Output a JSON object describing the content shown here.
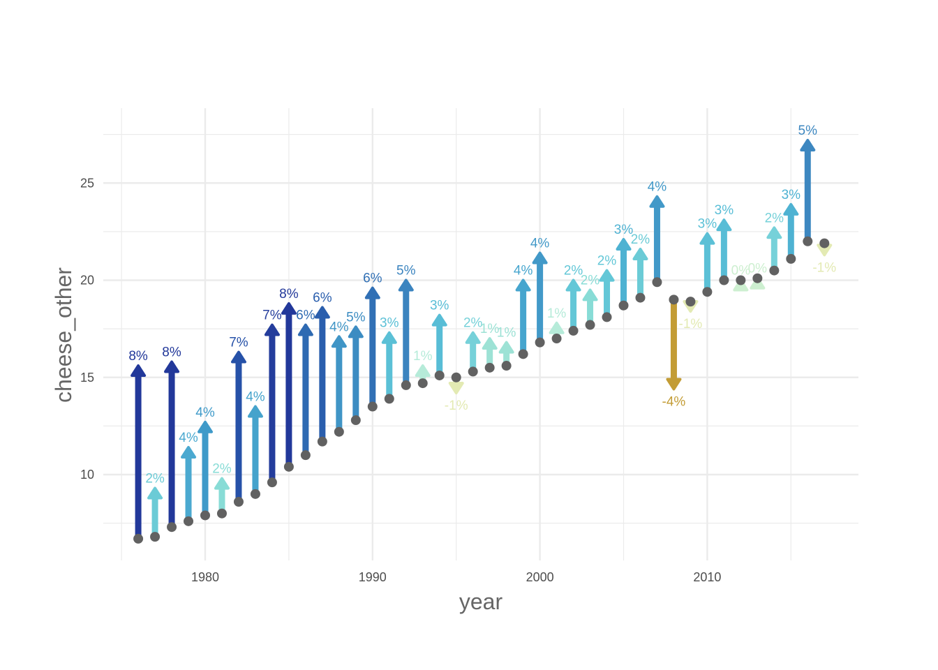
{
  "chart_data": {
    "type": "arrow-range",
    "title": "",
    "xlabel": "year",
    "ylabel": "cheese_other",
    "xlim": [
      1975,
      2018
    ],
    "ylim": [
      6,
      28.5
    ],
    "x_ticks": [
      1980,
      1990,
      2000,
      2010
    ],
    "x_tick_labels": [
      "1980",
      "1990",
      "2000",
      "2010"
    ],
    "y_ticks": [
      10,
      15,
      20,
      25
    ],
    "y_tick_labels": [
      "10",
      "15",
      "20",
      "25"
    ],
    "grid": true,
    "legend": "none",
    "start_point_color": "#616161",
    "points": [
      {
        "year": 1976,
        "from": 6.7,
        "to": 15.6,
        "label": "8%",
        "color": "#22389a"
      },
      {
        "year": 1977,
        "from": 6.8,
        "to": 9.3,
        "label": "2%",
        "color": "#6bcbd6"
      },
      {
        "year": 1978,
        "from": 7.3,
        "to": 15.8,
        "label": "8%",
        "color": "#22389a"
      },
      {
        "year": 1979,
        "from": 7.6,
        "to": 11.4,
        "label": "4%",
        "color": "#4ba9d0"
      },
      {
        "year": 1980,
        "from": 7.9,
        "to": 12.7,
        "label": "4%",
        "color": "#3f9ac9"
      },
      {
        "year": 1981,
        "from": 8.0,
        "to": 9.8,
        "label": "2%",
        "color": "#88dcd6"
      },
      {
        "year": 1982,
        "from": 8.6,
        "to": 16.3,
        "label": "7%",
        "color": "#2651a8"
      },
      {
        "year": 1983,
        "from": 9.0,
        "to": 13.5,
        "label": "4%",
        "color": "#45a3cc"
      },
      {
        "year": 1984,
        "from": 9.6,
        "to": 17.7,
        "label": "7%",
        "color": "#243d9c"
      },
      {
        "year": 1985,
        "from": 10.4,
        "to": 18.8,
        "label": "8%",
        "color": "#22389a"
      },
      {
        "year": 1986,
        "from": 11.0,
        "to": 17.7,
        "label": "6%",
        "color": "#2e6ab2"
      },
      {
        "year": 1987,
        "from": 11.7,
        "to": 18.6,
        "label": "6%",
        "color": "#2a5ead"
      },
      {
        "year": 1988,
        "from": 12.2,
        "to": 17.1,
        "label": "4%",
        "color": "#4095c6"
      },
      {
        "year": 1989,
        "from": 12.8,
        "to": 17.6,
        "label": "5%",
        "color": "#3c8cc2"
      },
      {
        "year": 1990,
        "from": 13.5,
        "to": 19.6,
        "label": "6%",
        "color": "#3170b5"
      },
      {
        "year": 1991,
        "from": 13.9,
        "to": 17.3,
        "label": "3%",
        "color": "#5bc0d6"
      },
      {
        "year": 1992,
        "from": 14.6,
        "to": 20.0,
        "label": "5%",
        "color": "#3b84bf"
      },
      {
        "year": 1993,
        "from": 14.7,
        "to": 15.6,
        "label": "1%",
        "color": "#b6ebd9"
      },
      {
        "year": 1994,
        "from": 15.1,
        "to": 18.2,
        "label": "3%",
        "color": "#58bdd6"
      },
      {
        "year": 1995,
        "from": 15.0,
        "to": 14.2,
        "label": "-1%",
        "color": "#e3eab3"
      },
      {
        "year": 1996,
        "from": 15.3,
        "to": 17.3,
        "label": "2%",
        "color": "#76d1d9"
      },
      {
        "year": 1997,
        "from": 15.5,
        "to": 17.0,
        "label": "1%",
        "color": "#9de2d5"
      },
      {
        "year": 1998,
        "from": 15.6,
        "to": 16.8,
        "label": "1%",
        "color": "#9de2d5"
      },
      {
        "year": 1999,
        "from": 16.2,
        "to": 20.0,
        "label": "4%",
        "color": "#46a5ce"
      },
      {
        "year": 2000,
        "from": 16.8,
        "to": 21.4,
        "label": "4%",
        "color": "#4299c8"
      },
      {
        "year": 2001,
        "from": 17.0,
        "to": 17.8,
        "label": "1%",
        "color": "#b6ebd9"
      },
      {
        "year": 2002,
        "from": 17.4,
        "to": 20.0,
        "label": "2%",
        "color": "#63c7d7"
      },
      {
        "year": 2003,
        "from": 17.7,
        "to": 19.5,
        "label": "2%",
        "color": "#88dcd6"
      },
      {
        "year": 2004,
        "from": 18.1,
        "to": 20.5,
        "label": "2%",
        "color": "#63c7d7"
      },
      {
        "year": 2005,
        "from": 18.7,
        "to": 22.1,
        "label": "3%",
        "color": "#4eb2d2"
      },
      {
        "year": 2006,
        "from": 19.1,
        "to": 21.6,
        "label": "2%",
        "color": "#6bcbd6"
      },
      {
        "year": 2007,
        "from": 19.9,
        "to": 24.3,
        "label": "4%",
        "color": "#4299c8"
      },
      {
        "year": 2008,
        "from": 19.0,
        "to": 14.4,
        "label": "-4%",
        "color": "#c39c35"
      },
      {
        "year": 2009,
        "from": 18.9,
        "to": 18.4,
        "label": "-1%",
        "color": "#e3eab3"
      },
      {
        "year": 2010,
        "from": 19.4,
        "to": 22.4,
        "label": "3%",
        "color": "#5bc0d6"
      },
      {
        "year": 2011,
        "from": 20.0,
        "to": 23.1,
        "label": "3%",
        "color": "#58bdd6"
      },
      {
        "year": 2012,
        "from": 20.0,
        "to": 20.0,
        "label": "0%",
        "color": "#cdefd0"
      },
      {
        "year": 2013,
        "from": 20.1,
        "to": 20.1,
        "label": "0%",
        "color": "#cdefd0"
      },
      {
        "year": 2014,
        "from": 20.5,
        "to": 22.7,
        "label": "2%",
        "color": "#76d1d9"
      },
      {
        "year": 2015,
        "from": 21.1,
        "to": 23.9,
        "label": "3%",
        "color": "#4eb2d2"
      },
      {
        "year": 2016,
        "from": 22.0,
        "to": 27.2,
        "label": "5%",
        "color": "#3d87c0"
      },
      {
        "year": 2017,
        "from": 21.9,
        "to": 21.3,
        "label": "-1%",
        "color": "#e3eab3"
      }
    ]
  }
}
